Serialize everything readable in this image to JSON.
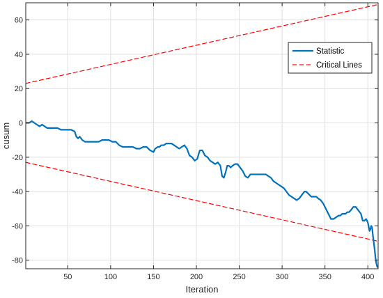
{
  "chart_data": {
    "type": "line",
    "title": "",
    "xlabel": "Iteration",
    "ylabel": "cusum",
    "xlim": [
      1,
      412
    ],
    "ylim": [
      -85,
      70
    ],
    "xticks": [
      50,
      100,
      150,
      200,
      250,
      300,
      350,
      400
    ],
    "yticks": [
      -80,
      -60,
      -40,
      -20,
      0,
      20,
      40,
      60
    ],
    "grid": true,
    "legend_position": "top-right",
    "series": [
      {
        "name": "Statistic",
        "style": "solid",
        "color": "#0072BD",
        "x": [
          1,
          3,
          5,
          8,
          11,
          14,
          17,
          20,
          23,
          26,
          30,
          34,
          38,
          42,
          46,
          50,
          54,
          58,
          60,
          62,
          64,
          67,
          70,
          73,
          76,
          78,
          80,
          83,
          86,
          90,
          94,
          98,
          102,
          106,
          110,
          114,
          118,
          122,
          126,
          130,
          134,
          138,
          142,
          146,
          150,
          152,
          155,
          157,
          159,
          162,
          165,
          168,
          171,
          174,
          177,
          180,
          183,
          186,
          189,
          192,
          195,
          198,
          201,
          204,
          207,
          210,
          213,
          216,
          219,
          222,
          225,
          228,
          230,
          232,
          234,
          236,
          238,
          240,
          242,
          245,
          248,
          251,
          254,
          257,
          260,
          263,
          266,
          269,
          272,
          275,
          278,
          281,
          284,
          287,
          290,
          293,
          296,
          299,
          302,
          305,
          308,
          311,
          314,
          317,
          320,
          323,
          326,
          328,
          330,
          332,
          334,
          336,
          338,
          340,
          342,
          345,
          348,
          351,
          354,
          357,
          360,
          363,
          366,
          368,
          370,
          372,
          374,
          376,
          378,
          380,
          383,
          386,
          389,
          392,
          394,
          396,
          398,
          400,
          402,
          403,
          404,
          405,
          406,
          407,
          408,
          409,
          410,
          411,
          412
        ],
        "values": [
          0,
          0,
          0,
          1,
          0,
          -1,
          -2,
          -1,
          -2,
          -3,
          -3,
          -3,
          -3,
          -4,
          -4,
          -4,
          -4,
          -5,
          -8,
          -9,
          -8,
          -10,
          -11,
          -11,
          -11,
          -11,
          -11,
          -11,
          -11,
          -10,
          -10,
          -10,
          -11,
          -11,
          -13,
          -14,
          -14,
          -14,
          -14,
          -15,
          -15,
          -14,
          -14,
          -16,
          -17,
          -15,
          -14,
          -14,
          -13,
          -13,
          -12,
          -12,
          -12,
          -13,
          -14,
          -15,
          -14,
          -13,
          -15,
          -19,
          -20,
          -22,
          -21,
          -16,
          -16,
          -19,
          -20,
          -22,
          -23,
          -24,
          -23,
          -25,
          -31,
          -32,
          -29,
          -25,
          -25,
          -26,
          -25,
          -24,
          -24,
          -26,
          -28,
          -31,
          -32,
          -30,
          -30,
          -30,
          -30,
          -30,
          -30,
          -30,
          -31,
          -32,
          -34,
          -35,
          -36,
          -37,
          -38,
          -40,
          -42,
          -43,
          -44,
          -45,
          -44,
          -42,
          -40,
          -40,
          -41,
          -42,
          -43,
          -43,
          -43,
          -43,
          -44,
          -45,
          -47,
          -50,
          -53,
          -56,
          -56,
          -55,
          -54,
          -54,
          -53,
          -53,
          -53,
          -52,
          -52,
          -51,
          -49,
          -49,
          -51,
          -53,
          -57,
          -57,
          -56,
          -58,
          -63,
          -62,
          -60,
          -61,
          -66,
          -70,
          -74,
          -79,
          -82,
          -84,
          -84
        ]
      },
      {
        "name": "Critical Lines",
        "style": "dashed",
        "color": "#FF0000",
        "x": [
          1,
          412
        ],
        "values": [
          23,
          69
        ]
      },
      {
        "name": "",
        "style": "dashed",
        "color": "#FF0000",
        "x": [
          1,
          412
        ],
        "values": [
          -23,
          -69
        ]
      }
    ]
  }
}
